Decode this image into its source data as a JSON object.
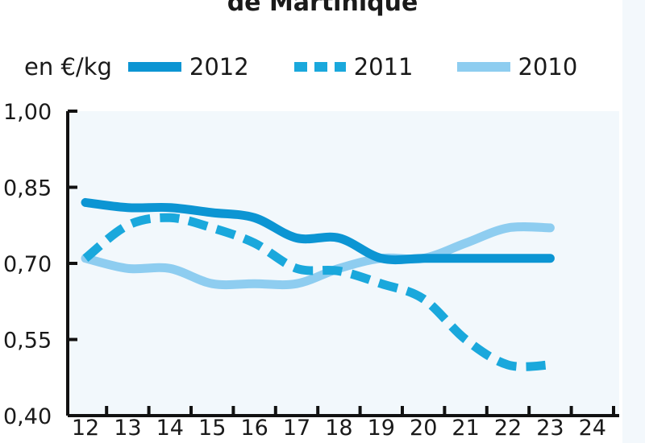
{
  "title": "de Martinique",
  "legend": {
    "unit": "en €/kg"
  },
  "chart_data": {
    "type": "line",
    "title": "de Martinique",
    "ylabel": "en €/kg",
    "xlabel": "",
    "x": [
      12,
      13,
      14,
      15,
      16,
      17,
      18,
      19,
      20,
      21,
      22,
      23
    ],
    "xlim": [
      12,
      24
    ],
    "x_ticks": [
      "12",
      "13",
      "14",
      "15",
      "16",
      "17",
      "18",
      "19",
      "20",
      "21",
      "22",
      "23",
      "24"
    ],
    "ylim": [
      0.4,
      1.0
    ],
    "y_ticks": [
      "0,40",
      "0,55",
      "0,70",
      "0,85",
      "1,00"
    ],
    "grid": false,
    "legend_position": "top",
    "background": "#f2f8fc",
    "series": [
      {
        "name": "2012",
        "style": "solid",
        "color": "#0c95d3",
        "values": [
          0.82,
          0.81,
          0.81,
          0.8,
          0.79,
          0.75,
          0.75,
          0.71,
          0.71,
          0.71,
          0.71,
          0.71
        ]
      },
      {
        "name": "2011",
        "style": "dashed",
        "color": "#1aa8dc",
        "values": [
          0.71,
          0.775,
          0.79,
          0.77,
          0.74,
          0.69,
          0.685,
          0.66,
          0.63,
          0.55,
          0.5,
          0.5
        ]
      },
      {
        "name": "2010",
        "style": "solid",
        "color": "#8ecdf0",
        "values": [
          0.71,
          0.69,
          0.69,
          0.66,
          0.66,
          0.66,
          0.69,
          0.71,
          0.71,
          0.74,
          0.77,
          0.77
        ]
      }
    ]
  }
}
